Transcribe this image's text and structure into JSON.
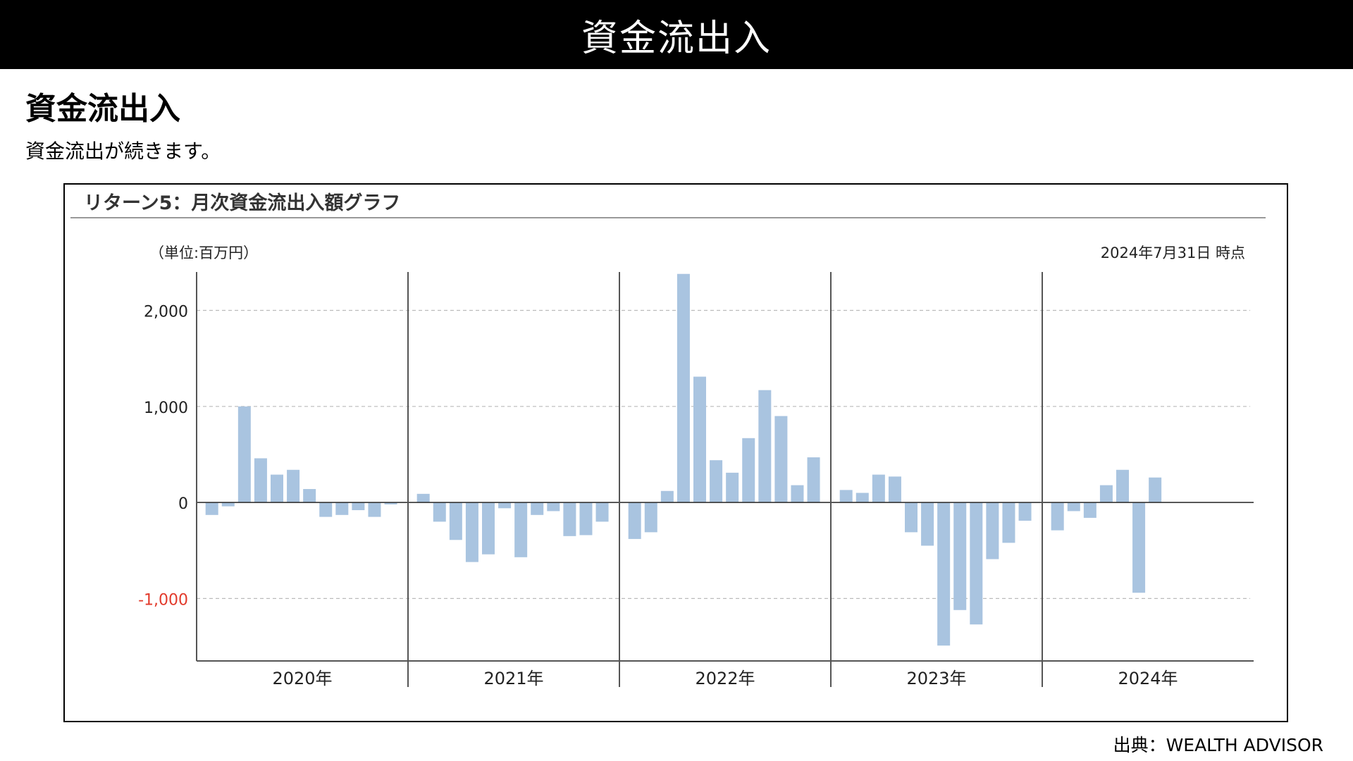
{
  "banner": {
    "title": "資金流出入"
  },
  "heading": "資金流出入",
  "description": "資金流出が続きます。",
  "panel": {
    "title": "リターン5：月次資金流出入額グラフ"
  },
  "source": "出典：WEALTH ADVISOR",
  "colors": {
    "bar": "#a9c4e0",
    "negative_tick": "#e23a2b",
    "grid": "#bbbbbb",
    "axis": "#555555"
  },
  "chart_data": {
    "type": "bar",
    "unit_label": "（単位:百万円）",
    "as_of": "2024年7月31日 時点",
    "ylim": [
      -1650,
      2400
    ],
    "yticks": [
      {
        "value": 2000,
        "label": "2,000"
      },
      {
        "value": 1000,
        "label": "1,000"
      },
      {
        "value": 0,
        "label": "0"
      },
      {
        "value": -1000,
        "label": "-1,000"
      }
    ],
    "grid": true,
    "groups": [
      {
        "label": "2020年",
        "values": [
          -130,
          -40,
          1000,
          460,
          290,
          340,
          140,
          -150,
          -130,
          -80,
          -150,
          -20
        ]
      },
      {
        "label": "2021年",
        "values": [
          90,
          -200,
          -390,
          -620,
          -540,
          -60,
          -570,
          -130,
          -90,
          -350,
          -340,
          -200
        ]
      },
      {
        "label": "2022年",
        "values": [
          -380,
          -310,
          120,
          2380,
          1310,
          440,
          310,
          670,
          1170,
          900,
          180,
          470
        ]
      },
      {
        "label": "2023年",
        "values": [
          130,
          100,
          290,
          270,
          -310,
          -450,
          -1490,
          -1120,
          -1270,
          -590,
          -420,
          -190
        ]
      },
      {
        "label": "2024年",
        "values": [
          -290,
          -90,
          -160,
          180,
          340,
          -940,
          260
        ]
      }
    ]
  }
}
